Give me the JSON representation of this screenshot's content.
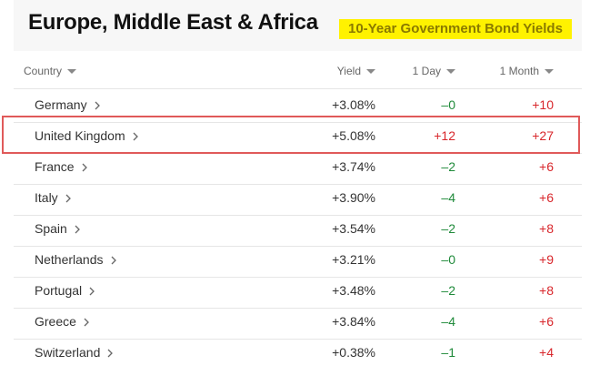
{
  "header": {
    "title": "Europe, Middle East & Africa",
    "subtitle": "10-Year Government Bond Yields"
  },
  "table": {
    "columns": [
      "Country",
      "Yield",
      "1 Day",
      "1 Month"
    ],
    "rows": [
      [
        "Germany",
        "+3.08%",
        "–0",
        "+10"
      ],
      [
        "United Kingdom",
        "+5.08%",
        "+12",
        "+27"
      ],
      [
        "France",
        "+3.74%",
        "–2",
        "+6"
      ],
      [
        "Italy",
        "+3.90%",
        "–4",
        "+6"
      ],
      [
        "Spain",
        "+3.54%",
        "–2",
        "+8"
      ],
      [
        "Netherlands",
        "+3.21%",
        "–0",
        "+9"
      ],
      [
        "Portugal",
        "+3.48%",
        "–2",
        "+8"
      ],
      [
        "Greece",
        "+3.84%",
        "–4",
        "+6"
      ],
      [
        "Switzerland",
        "+0.38%",
        "–1",
        "+4"
      ]
    ]
  }
}
